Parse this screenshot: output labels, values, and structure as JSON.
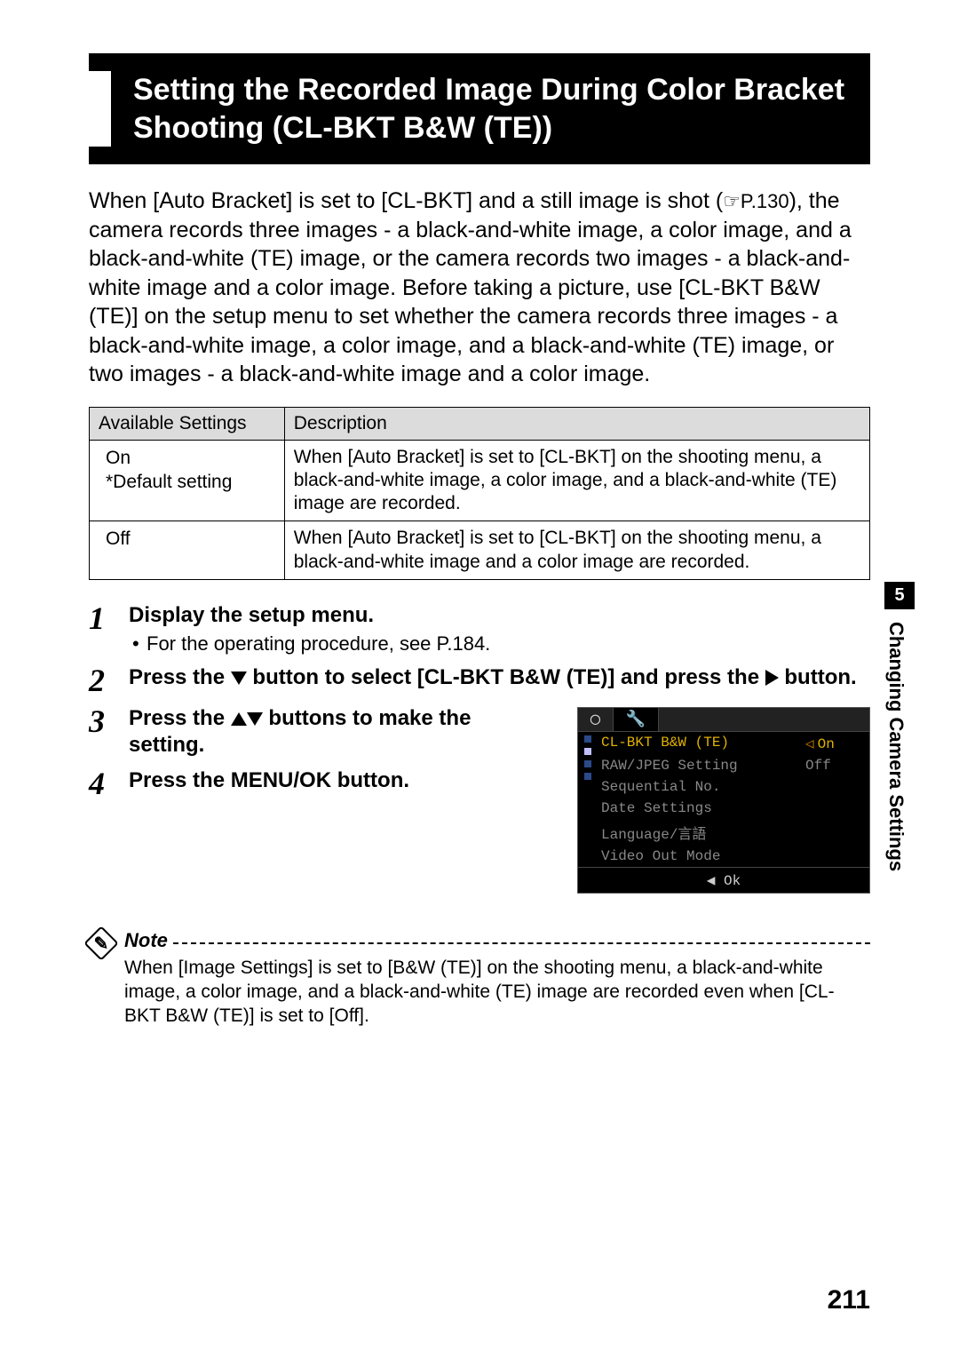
{
  "heading": "Setting the Recorded Image During Color Bracket Shooting (CL-BKT B&W (TE))",
  "intro_before_ref": "When [Auto Bracket] is set to [CL-BKT] and a still image is shot (",
  "intro_ref": "☞P.130",
  "intro_after_ref": "), the camera records three images - a black-and-white image, a color image, and a black-and-white (TE) image, or the camera records two images - a black-and-white image and a color image. Before taking a picture, use [CL-BKT B&W (TE)] on the setup menu to set whether the camera records three images - a black-and-white image, a color image, and a black-and-white (TE) image, or two images - a black-and-white image and a color image.",
  "table": {
    "headers": [
      "Available Settings",
      "Description"
    ],
    "rows": [
      [
        "On\n*Default setting",
        "When [Auto Bracket] is set to [CL-BKT] on the shooting menu, a black-and-white image, a color image, and a black-and-white (TE) image are recorded."
      ],
      [
        "Off",
        "When [Auto Bracket] is set to [CL-BKT] on the shooting menu, a black-and-white image and a color image are recorded."
      ]
    ]
  },
  "steps": [
    {
      "num": "1",
      "title": "Display the setup menu.",
      "sub": "For the operating procedure, see P.184."
    },
    {
      "num": "2",
      "title_parts": [
        "Press the ",
        "▼",
        " button to select [CL-BKT B&W (TE)] and press the ",
        "▶",
        " button."
      ]
    },
    {
      "num": "3",
      "title_parts": [
        "Press the ",
        "▲▼",
        " buttons to make the setting."
      ]
    },
    {
      "num": "4",
      "title": "Press the MENU/OK button."
    }
  ],
  "lcd": {
    "tabs": [
      "◯",
      "🔧"
    ],
    "rows": [
      {
        "label": "CL-BKT B&W (TE)",
        "value": "On",
        "selected": true
      },
      {
        "label": "RAW/JPEG Setting",
        "value": "Off"
      },
      {
        "label": "Sequential No.",
        "value": ""
      },
      {
        "label": "Date Settings",
        "value": ""
      },
      {
        "label": "Language/言語",
        "value": ""
      },
      {
        "label": "Video Out Mode",
        "value": ""
      }
    ],
    "footer": "◀ Ok"
  },
  "note": {
    "label": "Note",
    "text": "When [Image Settings] is set to [B&W (TE)] on the shooting menu, a black-and-white image, a color image, and a black-and-white (TE) image are recorded even when [CL-BKT B&W (TE)] is set to [Off]."
  },
  "side": {
    "chapter": "5",
    "label": "Changing Camera Settings"
  },
  "page_number": "211"
}
